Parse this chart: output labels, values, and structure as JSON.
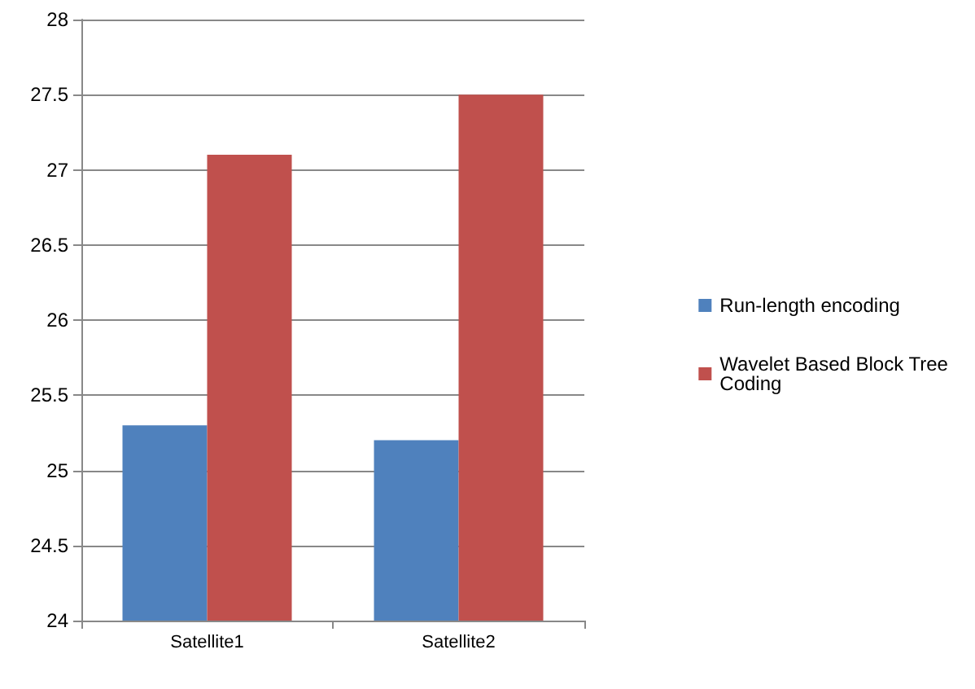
{
  "chart_data": {
    "type": "bar",
    "categories": [
      "Satellite1",
      "Satellite2"
    ],
    "series": [
      {
        "name": "Run-length encoding",
        "color": "#4f81bd",
        "values": [
          25.3,
          25.2
        ]
      },
      {
        "name": "Wavelet Based Block Tree Coding",
        "color": "#c0504d",
        "values": [
          27.1,
          27.5
        ]
      }
    ],
    "ylim": [
      24,
      28
    ],
    "yticks": [
      24,
      24.5,
      25,
      25.5,
      26,
      26.5,
      27,
      27.5,
      28
    ],
    "grid": "y",
    "legend": "right"
  }
}
